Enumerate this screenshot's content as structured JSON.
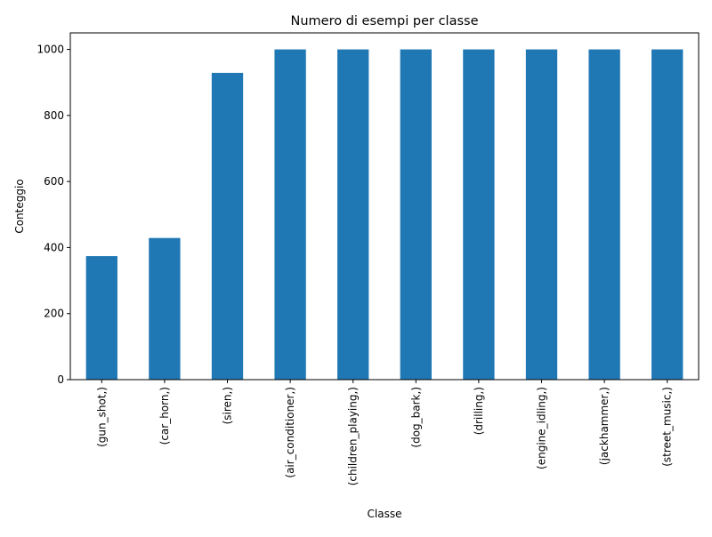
{
  "chart_data": {
    "type": "bar",
    "title": "Numero di esempi per classe",
    "xlabel": "Classe",
    "ylabel": "Conteggio",
    "categories": [
      "(gun_shot,)",
      "(car_horn,)",
      "(siren,)",
      "(air_conditioner,)",
      "(children_playing,)",
      "(dog_bark,)",
      "(drilling,)",
      "(engine_idling,)",
      "(jackhammer,)",
      "(street_music,)"
    ],
    "values": [
      374,
      429,
      929,
      1000,
      1000,
      1000,
      1000,
      1000,
      1000,
      1000
    ],
    "ylim": [
      0,
      1050
    ],
    "yticks": [
      0,
      200,
      400,
      600,
      800,
      1000
    ],
    "bar_color": "#1f77b4",
    "grid": false,
    "legend": false
  }
}
